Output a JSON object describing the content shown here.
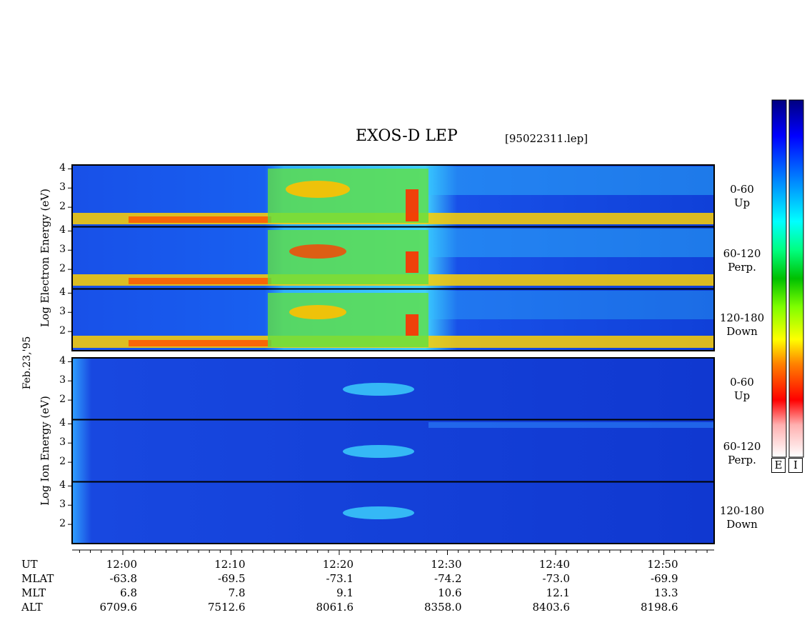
{
  "header": {
    "title": "EXOS-D LEP",
    "file_tag": "[95022311.lep]"
  },
  "left_labels": {
    "electron": "Log   Electron   Energy (eV)",
    "ion": "Log   Ion   Energy (eV)",
    "date": "Feb.23,'95"
  },
  "panels": [
    {
      "id": "e-up",
      "angle": "0-60",
      "dir": "Up"
    },
    {
      "id": "e-perp",
      "angle": "60-120",
      "dir": "Perp."
    },
    {
      "id": "e-down",
      "angle": "120-180",
      "dir": "Down"
    },
    {
      "id": "i-up",
      "angle": "0-60",
      "dir": "Up"
    },
    {
      "id": "i-perp",
      "angle": "60-120",
      "dir": "Perp."
    },
    {
      "id": "i-down",
      "angle": "120-180",
      "dir": "Down"
    }
  ],
  "colorbar": {
    "labels": [
      "E",
      "I"
    ],
    "colors": [
      "#ffffff",
      "#ffb0b0",
      "#ff0000",
      "#ff8000",
      "#ffff00",
      "#80ff00",
      "#00c000",
      "#00ff80",
      "#00ffff",
      "#0080ff",
      "#0000ff",
      "#000080"
    ]
  },
  "axis_rows": {
    "labels": [
      "UT",
      "MLAT",
      "MLT",
      "ALT"
    ],
    "ut": [
      "12:00",
      "12:10",
      "12:20",
      "12:30",
      "12:40",
      "12:50"
    ],
    "mlat": [
      "-63.8",
      "-69.5",
      "-73.1",
      "-74.2",
      "-73.0",
      "-69.9"
    ],
    "mlt": [
      "6.8",
      "7.8",
      "9.1",
      "10.6",
      "12.1",
      "13.3"
    ],
    "alt": [
      "6709.6",
      "7512.6",
      "8061.6",
      "8358.0",
      "8403.6",
      "8198.6"
    ]
  },
  "chart_data": {
    "type": "heatmap",
    "title": "EXOS-D LEP",
    "x_range": [
      "11:55",
      "12:55"
    ],
    "y_ticks": [
      2,
      3,
      4
    ],
    "y_range": [
      1,
      4.2
    ],
    "ylabel_electron": "Log   Electron   Energy (eV)",
    "ylabel_ion": "Log   Ion   Energy (eV)"
  }
}
